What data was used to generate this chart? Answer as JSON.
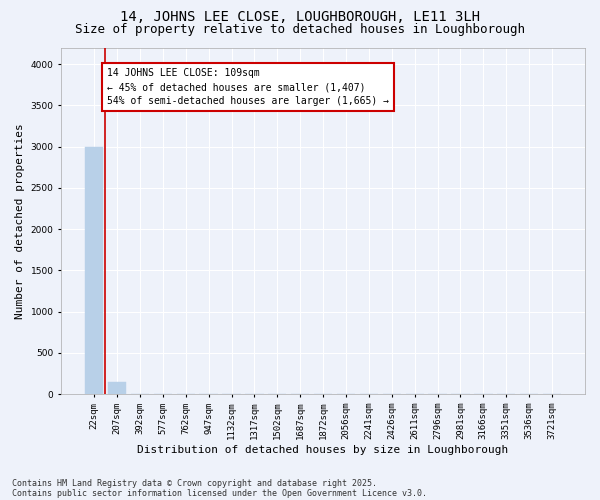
{
  "title_line1": "14, JOHNS LEE CLOSE, LOUGHBOROUGH, LE11 3LH",
  "title_line2": "Size of property relative to detached houses in Loughborough",
  "xlabel": "Distribution of detached houses by size in Loughborough",
  "ylabel": "Number of detached properties",
  "categories": [
    "22sqm",
    "207sqm",
    "392sqm",
    "577sqm",
    "762sqm",
    "947sqm",
    "1132sqm",
    "1317sqm",
    "1502sqm",
    "1687sqm",
    "1872sqm",
    "2056sqm",
    "2241sqm",
    "2426sqm",
    "2611sqm",
    "2796sqm",
    "2981sqm",
    "3166sqm",
    "3351sqm",
    "3536sqm",
    "3721sqm"
  ],
  "bar_heights": [
    3000,
    150,
    0,
    0,
    0,
    0,
    0,
    0,
    0,
    0,
    0,
    0,
    0,
    0,
    0,
    0,
    0,
    0,
    0,
    0,
    0
  ],
  "bar_color": "#b8d0e8",
  "bar_edge_color": "#b8d0e8",
  "background_color": "#eef2fa",
  "grid_color": "#ffffff",
  "annotation_text": "14 JOHNS LEE CLOSE: 109sqm\n← 45% of detached houses are smaller (1,407)\n54% of semi-detached houses are larger (1,665) →",
  "annotation_box_color": "#ffffff",
  "annotation_box_edge": "#cc0000",
  "vline_color": "#cc0000",
  "ylim": [
    0,
    4200
  ],
  "yticks": [
    0,
    500,
    1000,
    1500,
    2000,
    2500,
    3000,
    3500,
    4000
  ],
  "footnote1": "Contains HM Land Registry data © Crown copyright and database right 2025.",
  "footnote2": "Contains public sector information licensed under the Open Government Licence v3.0.",
  "title_fontsize": 10,
  "subtitle_fontsize": 9,
  "tick_fontsize": 6.5,
  "ylabel_fontsize": 8,
  "xlabel_fontsize": 8,
  "annotation_fontsize": 7,
  "footnote_fontsize": 6
}
